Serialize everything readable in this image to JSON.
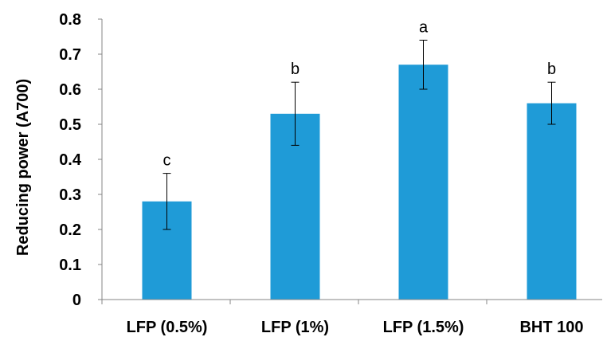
{
  "chart_data": {
    "type": "bar",
    "categories": [
      "LFP (0.5%)",
      "LFP (1%)",
      "LFP (1.5%)",
      "BHT 100"
    ],
    "values": [
      0.28,
      0.53,
      0.67,
      0.56
    ],
    "error_plus_minus": [
      0.08,
      0.09,
      0.07,
      0.06
    ],
    "significance_letters": [
      "c",
      "b",
      "a",
      "b"
    ],
    "ylabel": "Reducing power (A700)",
    "xlabel": "",
    "ylim": [
      0,
      0.8
    ],
    "yticks": [
      "0",
      "0.1",
      "0.2",
      "0.3",
      "0.4",
      "0.5",
      "0.6",
      "0.7",
      "0.8"
    ],
    "bar_color": "#1f9bd7",
    "grid": false,
    "legend": "none"
  }
}
